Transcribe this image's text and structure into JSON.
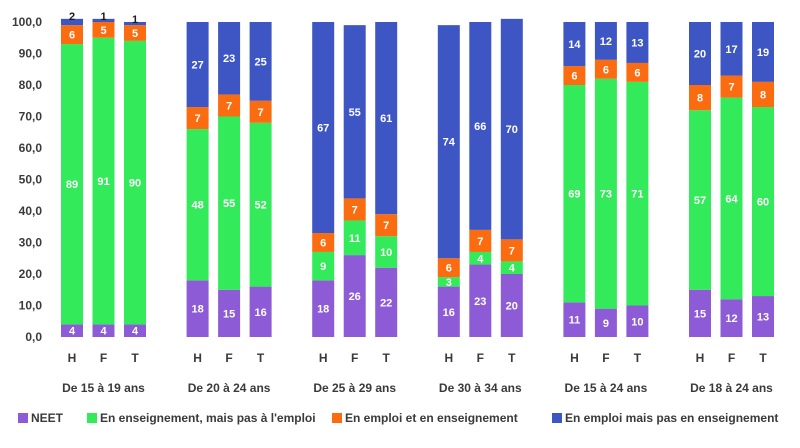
{
  "chart_data": {
    "type": "bar",
    "stacked": true,
    "ylim": [
      0,
      100
    ],
    "ytick_labels": [
      "0,0",
      "10,0",
      "20,0",
      "30,0",
      "40,0",
      "50,0",
      "60,0",
      "70,0",
      "80,0",
      "90,0",
      "100,0"
    ],
    "grid": false,
    "legend_position": "bottom",
    "groups": [
      {
        "label": "De 15 à 19 ans",
        "categories": [
          "H",
          "F",
          "T"
        ],
        "stacks": [
          [
            4,
            89,
            6,
            2
          ],
          [
            4,
            91,
            5,
            1
          ],
          [
            4,
            90,
            5,
            1
          ]
        ]
      },
      {
        "label": "De 20 à 24 ans",
        "categories": [
          "H",
          "F",
          "T"
        ],
        "stacks": [
          [
            18,
            48,
            7,
            27
          ],
          [
            15,
            55,
            7,
            23
          ],
          [
            16,
            52,
            7,
            25
          ]
        ]
      },
      {
        "label": "De 25 à 29 ans",
        "categories": [
          "H",
          "F",
          "T"
        ],
        "stacks": [
          [
            18,
            9,
            6,
            67
          ],
          [
            26,
            11,
            7,
            55
          ],
          [
            22,
            10,
            7,
            61
          ]
        ]
      },
      {
        "label": "De 30 à 34 ans",
        "categories": [
          "H",
          "F",
          "T"
        ],
        "stacks": [
          [
            16,
            3,
            6,
            74
          ],
          [
            23,
            4,
            7,
            66
          ],
          [
            20,
            4,
            7,
            70
          ]
        ]
      },
      {
        "label": "De 15 à 24 ans",
        "categories": [
          "H",
          "F",
          "T"
        ],
        "stacks": [
          [
            11,
            69,
            6,
            14
          ],
          [
            9,
            73,
            6,
            12
          ],
          [
            10,
            71,
            6,
            13
          ]
        ]
      },
      {
        "label": "De 18 à 24 ans",
        "categories": [
          "H",
          "F",
          "T"
        ],
        "stacks": [
          [
            15,
            57,
            8,
            20
          ],
          [
            12,
            64,
            7,
            17
          ],
          [
            13,
            60,
            8,
            19
          ]
        ]
      }
    ],
    "series": [
      {
        "name": "NEET",
        "color": "#8e5bd6"
      },
      {
        "name": "En enseignement, mais pas à l'emploi",
        "color": "#33ea5a"
      },
      {
        "name": "En emploi et en enseignement",
        "color": "#fb6c10"
      },
      {
        "name": "En emploi mais pas en enseignement",
        "color": "#3d56c4"
      }
    ]
  }
}
